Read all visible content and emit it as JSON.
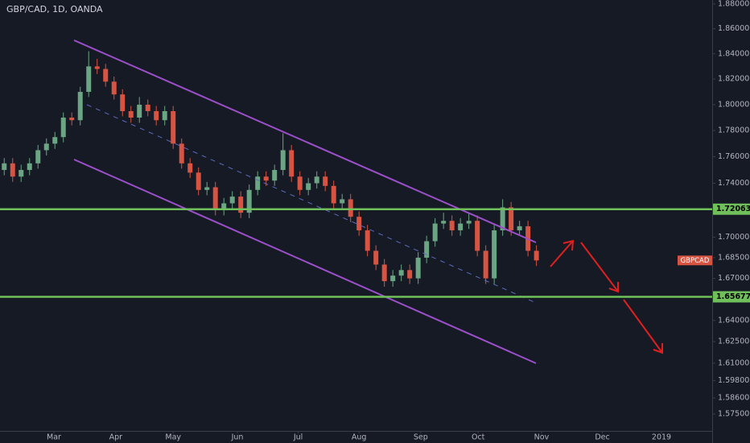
{
  "chart_data": {
    "type": "candlestick",
    "title": "GBP/CAD, 1D, OANDA",
    "log_scale": true,
    "series": [
      {
        "name": "GBPCAD",
        "up_color": "#6ba583",
        "down_color": "#d75442",
        "open": [
          1.75,
          1.755,
          1.745,
          1.75,
          1.755,
          1.765,
          1.77,
          1.775,
          1.79,
          1.788,
          1.81,
          1.83,
          1.828,
          1.818,
          1.808,
          1.795,
          1.79,
          1.8,
          1.795,
          1.788,
          1.795,
          1.77,
          1.755,
          1.748,
          1.735,
          1.737,
          1.72,
          1.725,
          1.73,
          1.718,
          1.735,
          1.745,
          1.742,
          1.75,
          1.765,
          1.745,
          1.735,
          1.74,
          1.745,
          1.738,
          1.725,
          1.728,
          1.715,
          1.705,
          1.69,
          1.68,
          1.668,
          1.672,
          1.676,
          1.67,
          1.685,
          1.697,
          1.71,
          1.712,
          1.705,
          1.71,
          1.712,
          1.69,
          1.67,
          1.705,
          1.722,
          1.705,
          1.708,
          1.69
        ],
        "high": [
          1.759,
          1.759,
          1.754,
          1.759,
          1.769,
          1.774,
          1.779,
          1.794,
          1.794,
          1.814,
          1.842,
          1.836,
          1.832,
          1.822,
          1.812,
          1.799,
          1.806,
          1.804,
          1.799,
          1.799,
          1.799,
          1.774,
          1.759,
          1.752,
          1.741,
          1.741,
          1.729,
          1.734,
          1.734,
          1.739,
          1.749,
          1.749,
          1.754,
          1.778,
          1.769,
          1.749,
          1.744,
          1.749,
          1.749,
          1.742,
          1.732,
          1.732,
          1.719,
          1.709,
          1.694,
          1.684,
          1.676,
          1.68,
          1.68,
          1.689,
          1.701,
          1.714,
          1.718,
          1.716,
          1.714,
          1.718,
          1.716,
          1.694,
          1.709,
          1.728,
          1.726,
          1.712,
          1.712,
          1.694
        ],
        "low": [
          1.746,
          1.741,
          1.741,
          1.746,
          1.751,
          1.761,
          1.766,
          1.771,
          1.784,
          1.784,
          1.806,
          1.824,
          1.814,
          1.804,
          1.791,
          1.786,
          1.786,
          1.791,
          1.784,
          1.784,
          1.766,
          1.751,
          1.744,
          1.731,
          1.731,
          1.716,
          1.716,
          1.721,
          1.714,
          1.714,
          1.731,
          1.738,
          1.738,
          1.746,
          1.741,
          1.731,
          1.731,
          1.736,
          1.734,
          1.721,
          1.721,
          1.711,
          1.701,
          1.686,
          1.676,
          1.664,
          1.664,
          1.668,
          1.666,
          1.666,
          1.681,
          1.693,
          1.706,
          1.701,
          1.701,
          1.706,
          1.686,
          1.666,
          1.666,
          1.701,
          1.701,
          1.701,
          1.686,
          1.679
        ],
        "close": [
          1.755,
          1.745,
          1.75,
          1.755,
          1.765,
          1.77,
          1.775,
          1.79,
          1.788,
          1.81,
          1.83,
          1.828,
          1.818,
          1.808,
          1.795,
          1.79,
          1.8,
          1.795,
          1.788,
          1.795,
          1.77,
          1.755,
          1.748,
          1.735,
          1.737,
          1.72,
          1.725,
          1.73,
          1.718,
          1.735,
          1.745,
          1.742,
          1.75,
          1.765,
          1.745,
          1.735,
          1.74,
          1.745,
          1.738,
          1.725,
          1.728,
          1.715,
          1.705,
          1.69,
          1.68,
          1.668,
          1.672,
          1.676,
          1.67,
          1.685,
          1.697,
          1.71,
          1.712,
          1.705,
          1.71,
          1.712,
          1.69,
          1.67,
          1.705,
          1.722,
          1.705,
          1.708,
          1.69,
          1.683
        ]
      }
    ],
    "levels": [
      {
        "value": 1.72063,
        "label": "1.72063"
      },
      {
        "value": 1.65677,
        "label": "1.65677"
      }
    ],
    "level_color": "#6fbf5a",
    "xlim": [
      -0.5,
      83.8
    ],
    "xticks": [
      {
        "value": 5.88,
        "label": "Mar"
      },
      {
        "value": 13.2,
        "label": "Apr"
      },
      {
        "value": 20,
        "label": "May"
      },
      {
        "value": 27.6,
        "label": "Jun"
      },
      {
        "value": 34.8,
        "label": "Jul"
      },
      {
        "value": 42,
        "label": "Aug"
      },
      {
        "value": 49.3,
        "label": "Sep"
      },
      {
        "value": 56.1,
        "label": "Oct"
      },
      {
        "value": 63.6,
        "label": "Nov"
      },
      {
        "value": 70.8,
        "label": "Dec"
      },
      {
        "value": 77.8,
        "label": "2019"
      }
    ],
    "ylim": [
      1.5636,
      1.8832
    ],
    "yticks": [
      {
        "value": 1.88,
        "label": "1.88000"
      },
      {
        "value": 1.86,
        "label": "1.86000"
      },
      {
        "value": 1.84,
        "label": "1.84000"
      },
      {
        "value": 1.82,
        "label": "1.82000"
      },
      {
        "value": 1.8,
        "label": "1.80000"
      },
      {
        "value": 1.78,
        "label": "1.78000"
      },
      {
        "value": 1.76,
        "label": "1.76000"
      },
      {
        "value": 1.74,
        "label": "1.74000"
      },
      {
        "value": 1.7,
        "label": "1.70000"
      },
      {
        "value": 1.685,
        "label": "1.68500"
      },
      {
        "value": 1.67,
        "label": "1.67000"
      },
      {
        "value": 1.64,
        "label": "1.64000"
      },
      {
        "value": 1.625,
        "label": "1.62500"
      },
      {
        "value": 1.61,
        "label": "1.61000"
      },
      {
        "value": 1.598,
        "label": "1.59800"
      },
      {
        "value": 1.586,
        "label": "1.58600"
      },
      {
        "value": 1.575,
        "label": "1.57500"
      }
    ]
  }
}
